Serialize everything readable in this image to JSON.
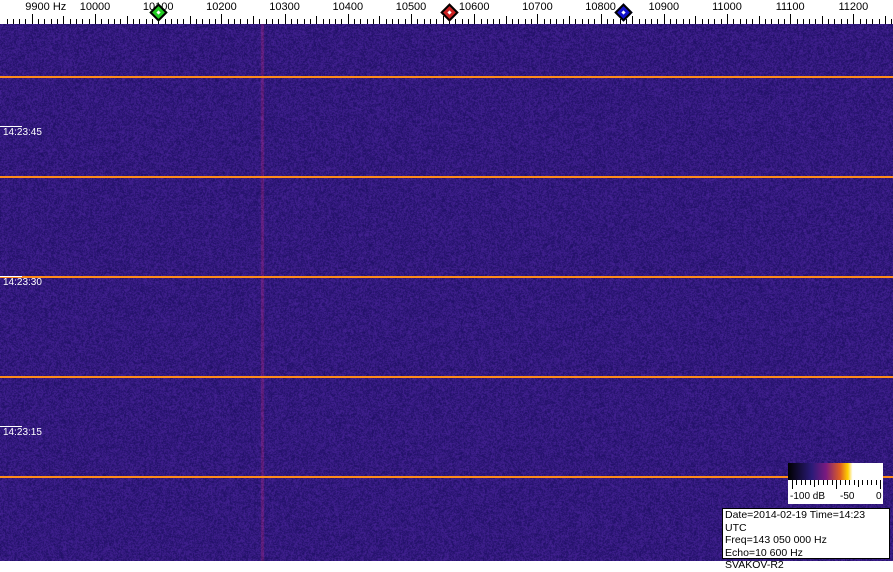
{
  "chart_data": {
    "type": "heatmap",
    "title": "",
    "x_axis": {
      "unit": "Hz",
      "range": [
        9850,
        11260
      ],
      "tick_labels": [
        "9900 Hz",
        "10000",
        "10100",
        "10200",
        "10300",
        "10400",
        "10500",
        "10600",
        "10700",
        "10800",
        "10900",
        "11000",
        "11100",
        "11200"
      ],
      "tick_values": [
        9900,
        10000,
        10100,
        10200,
        10300,
        10400,
        10500,
        10600,
        10700,
        10800,
        10900,
        11000,
        11100,
        11200
      ]
    },
    "y_axis": {
      "time_labels": [
        "14:23:45",
        "14:23:30",
        "14:23:15"
      ]
    },
    "markers": [
      {
        "color": "#22cc22",
        "freq_hz": 10100
      },
      {
        "color": "#cc2222",
        "freq_hz": 10560
      },
      {
        "color": "#1111cc",
        "freq_hz": 10835
      }
    ],
    "faint_carrier_freq_hz": 10265,
    "time_separator_color": "#ff8c1a",
    "background_color": "#2a1a7a",
    "color_scale": {
      "labels": [
        "-100 dB",
        "-50",
        "0"
      ],
      "range_db": [
        -100,
        0
      ]
    }
  },
  "info": {
    "line1": "Date=2014-02-19 Time=14:23 UTC",
    "line2": "Freq=143 050 000 Hz",
    "line3": "Echo=10 600 Hz",
    "line4": "SVAKOV-R2"
  }
}
